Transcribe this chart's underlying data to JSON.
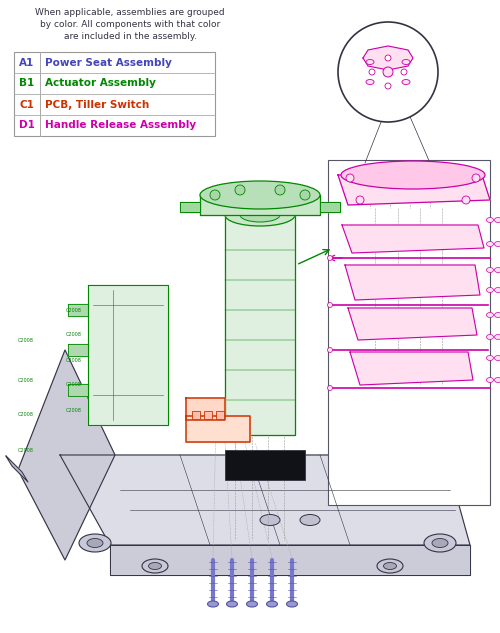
{
  "background_color": "#ffffff",
  "legend_text_lines": [
    "When applicable, assemblies are grouped",
    "by color. All components with that color",
    "are included in the assembly."
  ],
  "legend_items": [
    {
      "code": "A1",
      "label": "Power Seat Assembly",
      "color": "#4444bb"
    },
    {
      "code": "B1",
      "label": "Actuator Assembly",
      "color": "#008800"
    },
    {
      "code": "C1",
      "label": "PCB, Tiller Switch",
      "color": "#cc3300"
    },
    {
      "code": "D1",
      "label": "Handle Release Assembly",
      "color": "#cc00aa"
    }
  ],
  "colors": {
    "green": "#008800",
    "magenta": "#cc00aa",
    "red": "#cc3300",
    "blue": "#4444bb",
    "dark": "#333344",
    "screw_blue": "#7777cc",
    "gray": "#888899",
    "frame_fill": "#dddde8",
    "frame_fill2": "#ccccd8",
    "green_fill": "#e0f0e0",
    "magenta_fill": "#ffe0f0",
    "red_fill": "#ffe0d0"
  }
}
